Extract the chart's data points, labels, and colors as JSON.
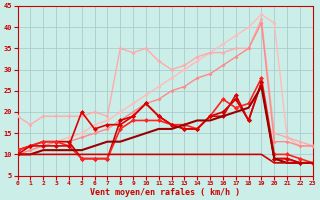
{
  "background_color": "#cceee8",
  "grid_color": "#aacccc",
  "xlabel": "Vent moyen/en rafales ( km/h )",
  "xlim": [
    0,
    23
  ],
  "ylim": [
    5,
    45
  ],
  "yticks": [
    5,
    10,
    15,
    20,
    25,
    30,
    35,
    40,
    45
  ],
  "xticks": [
    0,
    1,
    2,
    3,
    4,
    5,
    6,
    7,
    8,
    9,
    10,
    11,
    12,
    13,
    14,
    15,
    16,
    17,
    18,
    19,
    20,
    21,
    22,
    23
  ],
  "lines": [
    {
      "x": [
        0,
        1,
        2,
        3,
        4,
        5,
        6,
        7,
        8,
        9,
        10,
        11,
        12,
        13,
        14,
        15,
        16,
        17,
        18,
        19,
        20,
        21,
        22,
        23
      ],
      "y": [
        10,
        11,
        12,
        13,
        14,
        15,
        17,
        18,
        20,
        22,
        24,
        26,
        28,
        30,
        32,
        34,
        36,
        38,
        40,
        43,
        41,
        14,
        12,
        12
      ],
      "color": "#ffbbbb",
      "lw": 1.0,
      "marker": "D",
      "ms": 2.0
    },
    {
      "x": [
        0,
        1,
        2,
        3,
        4,
        5,
        6,
        7,
        8,
        9,
        10,
        11,
        12,
        13,
        14,
        15,
        16,
        17,
        18,
        19,
        20,
        21,
        22,
        23
      ],
      "y": [
        19,
        17,
        19,
        19,
        19,
        19,
        20,
        19,
        35,
        34,
        35,
        32,
        30,
        31,
        33,
        34,
        34,
        35,
        35,
        42,
        15,
        14,
        13,
        12
      ],
      "color": "#ffaaaa",
      "lw": 1.0,
      "marker": "D",
      "ms": 2.0
    },
    {
      "x": [
        0,
        1,
        2,
        3,
        4,
        5,
        6,
        7,
        8,
        9,
        10,
        11,
        12,
        13,
        14,
        15,
        16,
        17,
        18,
        19,
        20,
        21,
        22,
        23
      ],
      "y": [
        10,
        11,
        12,
        13,
        13,
        14,
        15,
        16,
        18,
        20,
        22,
        23,
        25,
        26,
        28,
        29,
        31,
        33,
        35,
        41,
        13,
        13,
        12,
        12
      ],
      "color": "#ff8888",
      "lw": 1.0,
      "marker": "D",
      "ms": 2.0
    },
    {
      "x": [
        0,
        1,
        2,
        3,
        4,
        5,
        6,
        7,
        8,
        9,
        10,
        11,
        12,
        13,
        14,
        15,
        16,
        17,
        18,
        19,
        20,
        21,
        22,
        23
      ],
      "y": [
        11,
        12,
        13,
        13,
        13,
        9,
        9,
        9,
        18,
        19,
        22,
        19,
        17,
        16,
        16,
        19,
        20,
        23,
        18,
        27,
        9,
        9,
        8,
        8
      ],
      "color": "#cc0000",
      "lw": 1.2,
      "marker": "D",
      "ms": 2.5
    },
    {
      "x": [
        0,
        1,
        2,
        3,
        4,
        5,
        6,
        7,
        8,
        9,
        10,
        11,
        12,
        13,
        14,
        15,
        16,
        17,
        18,
        19,
        20,
        21,
        22,
        23
      ],
      "y": [
        11,
        12,
        13,
        13,
        12,
        9,
        9,
        9,
        16,
        18,
        18,
        18,
        17,
        17,
        16,
        19,
        23,
        21,
        22,
        28,
        10,
        10,
        9,
        8
      ],
      "color": "#ff2222",
      "lw": 1.2,
      "marker": "D",
      "ms": 2.5
    },
    {
      "x": [
        0,
        1,
        2,
        3,
        4,
        5,
        6,
        7,
        8,
        9,
        10,
        11,
        12,
        13,
        14,
        15,
        16,
        17,
        18,
        19,
        20,
        21,
        22,
        23
      ],
      "y": [
        10,
        12,
        12,
        12,
        12,
        20,
        16,
        17,
        17,
        19,
        22,
        19,
        17,
        16,
        16,
        19,
        19,
        24,
        18,
        27,
        9,
        9,
        8,
        8
      ],
      "color": "#dd0000",
      "lw": 1.2,
      "marker": "D",
      "ms": 2.5
    },
    {
      "x": [
        0,
        1,
        2,
        3,
        4,
        5,
        6,
        7,
        8,
        9,
        10,
        11,
        12,
        13,
        14,
        15,
        16,
        17,
        18,
        19,
        20,
        21,
        22,
        23
      ],
      "y": [
        10,
        10,
        11,
        11,
        11,
        11,
        12,
        13,
        13,
        14,
        15,
        16,
        16,
        17,
        18,
        18,
        19,
        20,
        21,
        26,
        9,
        8,
        8,
        8
      ],
      "color": "#990000",
      "lw": 1.5,
      "marker": null,
      "ms": 0
    },
    {
      "x": [
        0,
        1,
        2,
        3,
        4,
        5,
        6,
        7,
        8,
        9,
        10,
        11,
        12,
        13,
        14,
        15,
        16,
        17,
        18,
        19,
        20,
        21,
        22,
        23
      ],
      "y": [
        10,
        10,
        10,
        10,
        10,
        10,
        10,
        10,
        10,
        10,
        10,
        10,
        10,
        10,
        10,
        10,
        10,
        10,
        10,
        10,
        8,
        8,
        8,
        8
      ],
      "color": "#cc0000",
      "lw": 1.2,
      "marker": null,
      "ms": 0
    }
  ]
}
